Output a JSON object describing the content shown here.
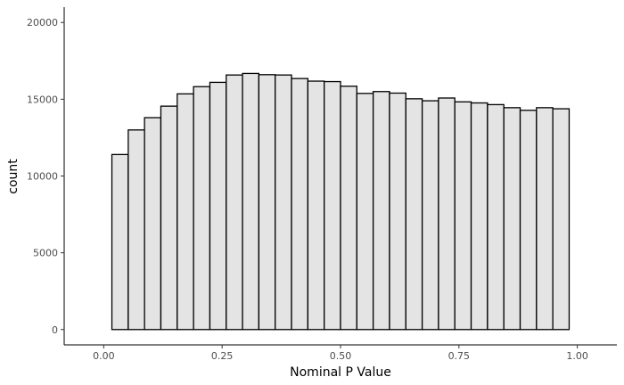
{
  "chart_data": {
    "type": "bar",
    "title": "",
    "xlabel": "Nominal P Value",
    "ylabel": "count",
    "xlim": [
      -0.0835,
      1.0835
    ],
    "ylim": [
      -1000,
      21000
    ],
    "x_ticks": [
      0.0,
      0.25,
      0.5,
      0.75,
      1.0
    ],
    "x_tick_labels": [
      "0.00",
      "0.25",
      "0.50",
      "0.75",
      "1.00"
    ],
    "y_ticks": [
      0,
      5000,
      10000,
      15000,
      20000
    ],
    "y_tick_labels": [
      "0",
      "5000",
      "10000",
      "15000",
      "20000"
    ],
    "bin_width": 0.0345,
    "bins_x": [
      0.0345,
      0.069,
      0.1034,
      0.1379,
      0.1724,
      0.2069,
      0.2414,
      0.2759,
      0.3103,
      0.3448,
      0.3793,
      0.4138,
      0.4483,
      0.4828,
      0.5172,
      0.5517,
      0.5862,
      0.6207,
      0.6552,
      0.6897,
      0.7241,
      0.7586,
      0.7931,
      0.8276,
      0.8621,
      0.8966,
      0.931,
      0.9655
    ],
    "values": [
      11400,
      13000,
      13800,
      14550,
      15350,
      15820,
      16100,
      16580,
      16680,
      16600,
      16580,
      16350,
      16180,
      16150,
      15850,
      15380,
      15500,
      15400,
      15030,
      14900,
      15080,
      14830,
      14760,
      14650,
      14450,
      14280,
      14450,
      14380
    ],
    "grid": false,
    "bar_fill": "#e4e4e4",
    "bar_stroke": "#000000"
  }
}
